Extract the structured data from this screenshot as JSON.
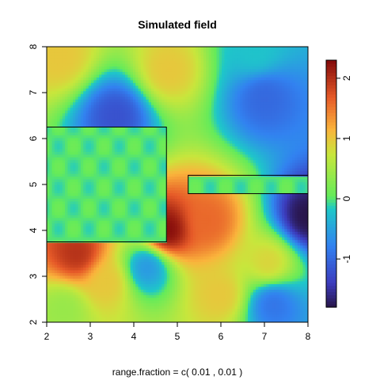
{
  "chart_data": {
    "type": "heatmap",
    "title": "Simulated field",
    "xlabel": "range.fraction = c( 0.01 ,  0.01 )",
    "ylabel": "",
    "xlim": [
      2,
      8
    ],
    "ylim": [
      2,
      8
    ],
    "x_ticks": [
      "2",
      "3",
      "4",
      "5",
      "6",
      "7",
      "8"
    ],
    "y_ticks": [
      "2",
      "3",
      "4",
      "5",
      "6",
      "7",
      "8"
    ],
    "colorbar": {
      "range": [
        -1.8,
        2.3
      ],
      "ticks": [
        "-1",
        "0",
        "1",
        "2"
      ],
      "colormap": "rainbow (dark blue to dark red)"
    },
    "rectangles": [
      {
        "x0": 2.0,
        "x1": 4.75,
        "y0": 3.75,
        "y1": 6.25
      },
      {
        "x0": 5.25,
        "x1": 8.0,
        "y0": 4.8,
        "y1": 5.2
      }
    ],
    "features": [
      {
        "x": 4.75,
        "y": 4.0,
        "value": 2.3
      },
      {
        "x": 5.7,
        "y": 4.2,
        "value": 1.6
      },
      {
        "x": 2.7,
        "y": 3.5,
        "value": 2.0
      },
      {
        "x": 2.3,
        "y": 7.8,
        "value": 1.0
      },
      {
        "x": 4.8,
        "y": 7.5,
        "value": 1.0
      },
      {
        "x": 3.6,
        "y": 6.5,
        "value": -1.2
      },
      {
        "x": 7.0,
        "y": 6.9,
        "value": -1.0
      },
      {
        "x": 8.0,
        "y": 4.3,
        "value": -1.8
      },
      {
        "x": 3.4,
        "y": 2.9,
        "value": 1.0
      },
      {
        "x": 4.3,
        "y": 3.2,
        "value": -0.6
      },
      {
        "x": 6.0,
        "y": 2.6,
        "value": 1.0
      },
      {
        "x": 7.1,
        "y": 3.3,
        "value": 0.9
      },
      {
        "x": 7.2,
        "y": 2.4,
        "value": -0.9
      },
      {
        "x": 6.8,
        "y": 7.9,
        "value": -0.2
      },
      {
        "x": 2.4,
        "y": 2.3,
        "value": 0.4
      }
    ],
    "masked_value": 0.0
  }
}
